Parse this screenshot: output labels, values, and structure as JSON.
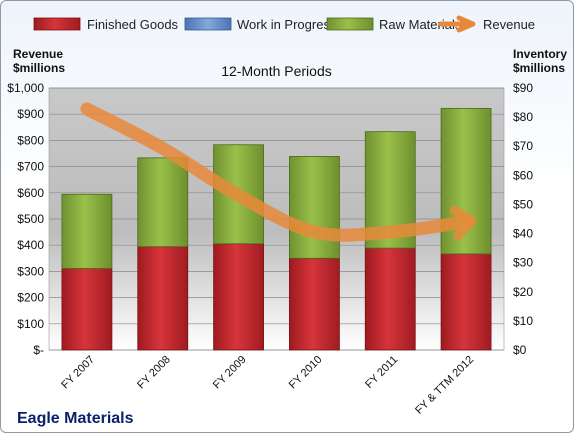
{
  "company": "Eagle Materials",
  "chart_data": {
    "type": "bar",
    "stacked": true,
    "subtitle": "12-Month Periods",
    "left_axis_title": [
      "Revenue",
      "$millions"
    ],
    "right_axis_title": [
      "Inventory",
      "$millions"
    ],
    "categories": [
      "FY 2007",
      "FY 2008",
      "FY 2009",
      "FY 2010",
      "FY 2011",
      "FY & TTM 2012"
    ],
    "left_ticks": [
      "$-",
      "$100",
      "$200",
      "$300",
      "$400",
      "$500",
      "$600",
      "$700",
      "$800",
      "$900",
      "$1,000"
    ],
    "right_ticks": [
      "$0",
      "$10",
      "$20",
      "$30",
      "$40",
      "$50",
      "$60",
      "$70",
      "$80",
      "$90"
    ],
    "ylim_left": [
      0,
      1000
    ],
    "ylim_right": [
      0,
      90
    ],
    "legend_position": "top",
    "series": [
      {
        "name": "Finished Goods",
        "axis": "right",
        "color": "#c0262d",
        "values": [
          28,
          35.5,
          36.5,
          31.5,
          35,
          33
        ]
      },
      {
        "name": "Work in Progress",
        "axis": "right",
        "color": "#5b86c8",
        "values": [
          0,
          0,
          0,
          0,
          0,
          0
        ]
      },
      {
        "name": "Raw Materials",
        "axis": "right",
        "color": "#84a83a",
        "values": [
          25.5,
          30.5,
          34,
          35,
          40,
          50
        ]
      },
      {
        "name": "Revenue",
        "axis": "left",
        "type": "line",
        "color": "#e8893a",
        "values": [
          920,
          770,
          590,
          450,
          450,
          490
        ]
      }
    ]
  }
}
